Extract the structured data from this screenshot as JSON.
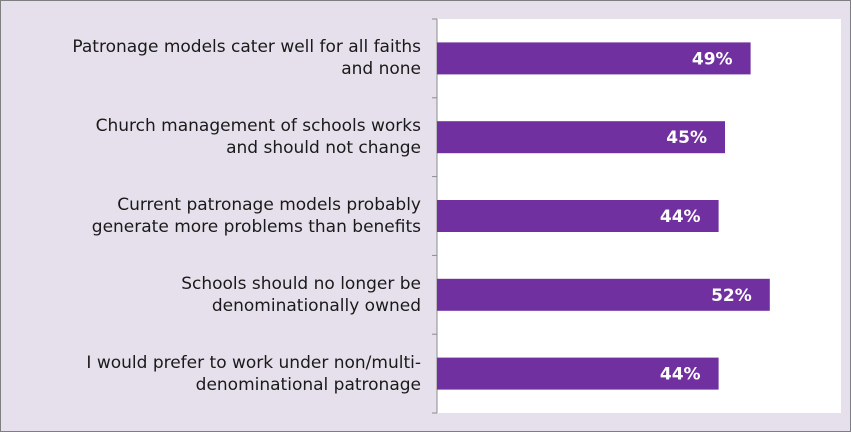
{
  "chart_data": {
    "type": "bar",
    "orientation": "horizontal",
    "categories": [
      "Patronage models cater well for all faiths\nand none",
      "Church management of schools works\nand should not change",
      "Current patronage models probably\ngenerate more problems than benefits",
      "Schools should no longer be\ndenominationally owned",
      "I would prefer to work under non/multi-\ndenominational patronage"
    ],
    "values": [
      49,
      45,
      44,
      52,
      44
    ],
    "value_labels": [
      "49%",
      "45%",
      "44%",
      "52%",
      "44%"
    ],
    "xlim": [
      0,
      60
    ],
    "grid": false,
    "legend": "none",
    "bar_color": "#7030a0",
    "label_color": "#ffffff",
    "panel_color": "#e6e0ec"
  }
}
